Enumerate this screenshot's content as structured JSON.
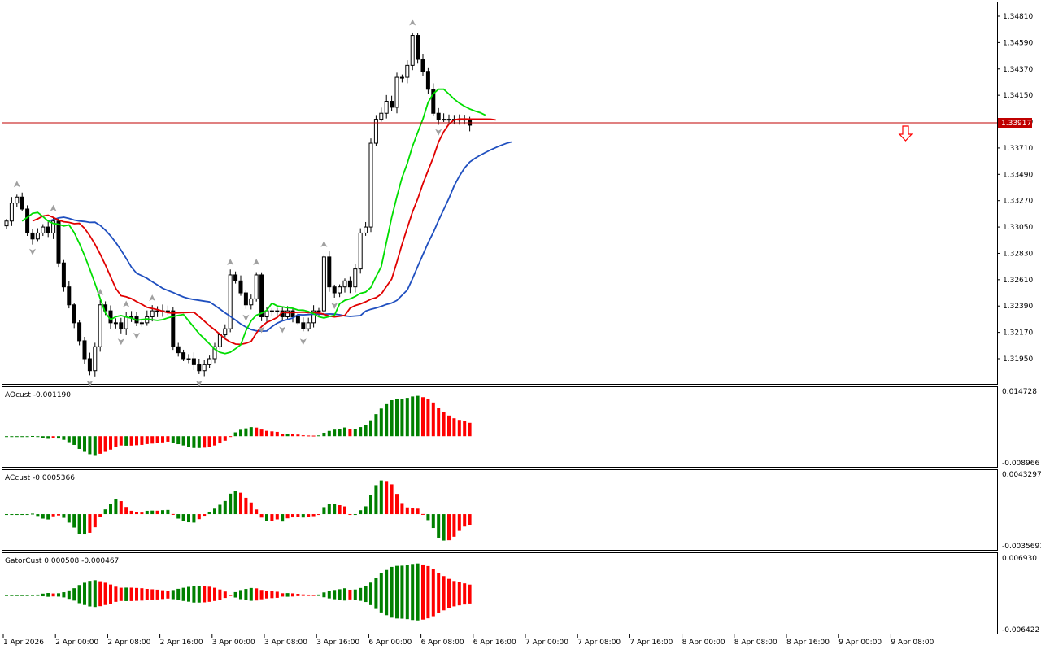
{
  "colors": {
    "bull": "#008000",
    "bear": "#ff0000",
    "jaw": "#1f4fbf",
    "teeth": "#e00000",
    "lips": "#00dd00",
    "price_line": "#c00000",
    "price_tag_bg": "#c00000",
    "fractal": "#a0a0a0",
    "down_arrow": "#ff0000"
  },
  "main": {
    "price_tag": "1.33917",
    "price_ticks": [
      "1.34810",
      "1.34590",
      "1.34370",
      "1.34150",
      "1.33930",
      "1.33710",
      "1.33490",
      "1.33270",
      "1.33050",
      "1.32830",
      "1.32610",
      "1.32390",
      "1.32170",
      "1.31950"
    ]
  },
  "ao": {
    "label": "AOcust -0.001190",
    "ticks": [
      "0.014728",
      "-0.008966"
    ]
  },
  "ac": {
    "label": "ACcust -0.0005366",
    "ticks": [
      "0.0043297",
      "-0.0035691"
    ]
  },
  "gator": {
    "label": "GatorCust 0.000508 -0.000467",
    "ticks": [
      "0.006930",
      "-0.006422"
    ]
  },
  "time_labels": [
    "1 Apr 2026",
    "2 Apr 00:00",
    "2 Apr 08:00",
    "2 Apr 16:00",
    "3 Apr 00:00",
    "3 Apr 08:00",
    "3 Apr 16:00",
    "6 Apr 00:00",
    "6 Apr 08:00",
    "6 Apr 16:00",
    "7 Apr 00:00",
    "7 Apr 08:00",
    "7 Apr 16:00",
    "8 Apr 00:00",
    "8 Apr 08:00",
    "8 Apr 16:00",
    "9 Apr 00:00",
    "9 Apr 08:00"
  ],
  "chart_data": [
    {
      "type": "line",
      "pane": "price",
      "series": [
        {
          "name": "close",
          "values": [
            1.331,
            1.3325,
            1.333,
            1.332,
            1.33,
            1.3295,
            1.33,
            1.3305,
            1.33,
            1.331,
            1.3275,
            1.3255,
            1.324,
            1.3225,
            1.321,
            1.3195,
            1.3185,
            1.3205,
            1.324,
            1.3235,
            1.3225,
            1.3225,
            1.322,
            1.323,
            1.323,
            1.3225,
            1.3225,
            1.323,
            1.3235,
            1.3235,
            1.3235,
            1.3235,
            1.3205,
            1.32,
            1.3195,
            1.3195,
            1.319,
            1.3185,
            1.319,
            1.3195,
            1.3205,
            1.3215,
            1.322,
            1.3265,
            1.326,
            1.325,
            1.324,
            1.3245,
            1.3265,
            1.323,
            1.3235,
            1.3235,
            1.3235,
            1.323,
            1.3235,
            1.323,
            1.3225,
            1.322,
            1.3225,
            1.3235,
            1.3235,
            1.328,
            1.3255,
            1.325,
            1.3255,
            1.326,
            1.3255,
            1.327,
            1.33,
            1.3305,
            1.3375,
            1.3395,
            1.34,
            1.341,
            1.3405,
            1.343,
            1.343,
            1.344,
            1.3465,
            1.3445,
            1.3435,
            1.342,
            1.34,
            1.3395,
            1.3395,
            1.3395,
            1.3395,
            1.3395,
            1.3395,
            1.339
          ]
        }
      ]
    },
    {
      "type": "bar",
      "pane": "AOcust",
      "ylim": [
        -0.008966,
        0.014728
      ]
    },
    {
      "type": "bar",
      "pane": "ACcust",
      "ylim": [
        -0.0035691,
        0.0043297
      ]
    },
    {
      "type": "bar",
      "pane": "GatorCust",
      "ylim": [
        -0.006422,
        0.00693
      ]
    }
  ]
}
